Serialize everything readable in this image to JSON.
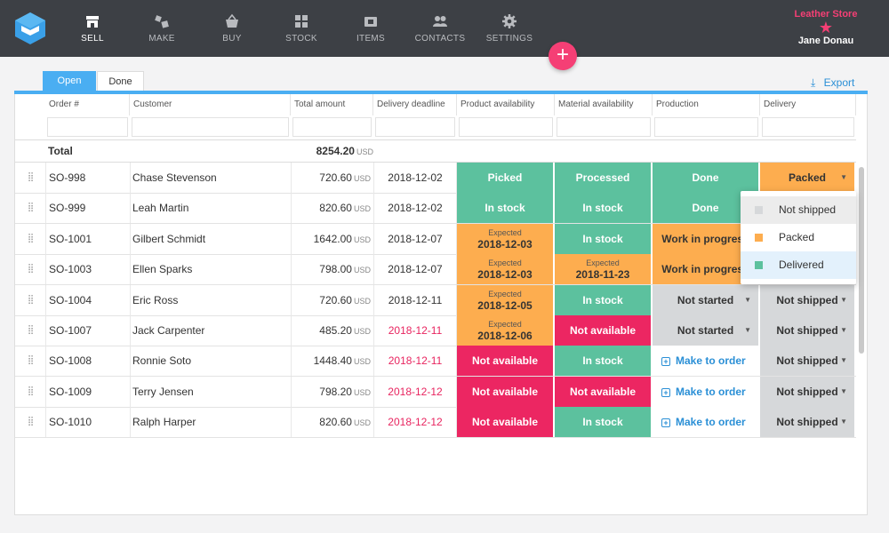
{
  "nav": {
    "items": [
      {
        "label": "SELL",
        "icon": "store-icon",
        "active": true
      },
      {
        "label": "MAKE",
        "icon": "make-icon",
        "active": false
      },
      {
        "label": "BUY",
        "icon": "basket-icon",
        "active": false
      },
      {
        "label": "STOCK",
        "icon": "stock-icon",
        "active": false
      },
      {
        "label": "ITEMS",
        "icon": "items-icon",
        "active": false
      },
      {
        "label": "CONTACTS",
        "icon": "contacts-icon",
        "active": false
      },
      {
        "label": "SETTINGS",
        "icon": "gear-icon",
        "active": false
      }
    ]
  },
  "store": {
    "name": "Leather Store",
    "user": "Jane Donau",
    "star": "★"
  },
  "fab": {
    "label": "+"
  },
  "tabs": [
    {
      "label": "Open",
      "active": true
    },
    {
      "label": "Done",
      "active": false
    }
  ],
  "toolbar": {
    "export_label": "Export",
    "export_icon": "⤓"
  },
  "table": {
    "columns": [
      "Order #",
      "Customer",
      "Total amount",
      "Delivery deadline",
      "Product availability",
      "Material availability",
      "Production",
      "Delivery"
    ],
    "total_label": "Total",
    "total_value": "8254.20",
    "currency": "USD",
    "rows": [
      {
        "order": "SO-998",
        "customer": "Chase Stevenson",
        "amount": "720.60",
        "deadline": "2018-12-02",
        "late": false,
        "product": {
          "text": "Picked",
          "color": "green"
        },
        "material": {
          "text": "Processed",
          "color": "green"
        },
        "production": {
          "text": "Done",
          "type": "green"
        },
        "delivery": {
          "text": "Packed",
          "type": "orange"
        }
      },
      {
        "order": "SO-999",
        "customer": "Leah Martin",
        "amount": "820.60",
        "deadline": "2018-12-02",
        "late": false,
        "product": {
          "text": "In stock",
          "color": "green"
        },
        "material": {
          "text": "In stock",
          "color": "green"
        },
        "production": {
          "text": "Done",
          "type": "green"
        },
        "delivery": {
          "text": "",
          "type": "none"
        }
      },
      {
        "order": "SO-1001",
        "customer": "Gilbert Schmidt",
        "amount": "1642.00",
        "deadline": "2018-12-07",
        "late": false,
        "product": {
          "text": "Expected",
          "date": "2018-12-03",
          "color": "orange"
        },
        "material": {
          "text": "In stock",
          "color": "green"
        },
        "production": {
          "text": "Work in progress",
          "type": "orange"
        },
        "delivery": {
          "text": "",
          "type": "none"
        }
      },
      {
        "order": "SO-1003",
        "customer": "Ellen Sparks",
        "amount": "798.00",
        "deadline": "2018-12-07",
        "late": false,
        "product": {
          "text": "Expected",
          "date": "2018-12-03",
          "color": "orange"
        },
        "material": {
          "text": "Expected",
          "date": "2018-11-23",
          "color": "orange"
        },
        "production": {
          "text": "Work in progress",
          "type": "orange"
        },
        "delivery": {
          "text": "",
          "type": "none"
        }
      },
      {
        "order": "SO-1004",
        "customer": "Eric Ross",
        "amount": "720.60",
        "deadline": "2018-12-11",
        "late": false,
        "product": {
          "text": "Expected",
          "date": "2018-12-05",
          "color": "orange"
        },
        "material": {
          "text": "In stock",
          "color": "green"
        },
        "production": {
          "text": "Not started",
          "type": "grey"
        },
        "delivery": {
          "text": "Not shipped",
          "type": "grey"
        }
      },
      {
        "order": "SO-1007",
        "customer": "Jack Carpenter",
        "amount": "485.20",
        "deadline": "2018-12-11",
        "late": true,
        "product": {
          "text": "Expected",
          "date": "2018-12-06",
          "color": "orange"
        },
        "material": {
          "text": "Not available",
          "color": "red"
        },
        "production": {
          "text": "Not started",
          "type": "grey"
        },
        "delivery": {
          "text": "Not shipped",
          "type": "grey"
        }
      },
      {
        "order": "SO-1008",
        "customer": "Ronnie Soto",
        "amount": "1448.40",
        "deadline": "2018-12-11",
        "late": true,
        "product": {
          "text": "Not available",
          "color": "red"
        },
        "material": {
          "text": "In stock",
          "color": "green"
        },
        "production": {
          "text": "Make to order",
          "type": "link"
        },
        "delivery": {
          "text": "Not shipped",
          "type": "grey"
        }
      },
      {
        "order": "SO-1009",
        "customer": "Terry Jensen",
        "amount": "798.20",
        "deadline": "2018-12-12",
        "late": true,
        "product": {
          "text": "Not available",
          "color": "red"
        },
        "material": {
          "text": "Not available",
          "color": "red"
        },
        "production": {
          "text": "Make to order",
          "type": "link"
        },
        "delivery": {
          "text": "Not shipped",
          "type": "grey"
        }
      },
      {
        "order": "SO-1010",
        "customer": "Ralph Harper",
        "amount": "820.60",
        "deadline": "2018-12-12",
        "late": true,
        "product": {
          "text": "Not available",
          "color": "red"
        },
        "material": {
          "text": "In stock",
          "color": "green"
        },
        "production": {
          "text": "Make to order",
          "type": "link"
        },
        "delivery": {
          "text": "Not shipped",
          "type": "grey"
        }
      }
    ]
  },
  "dropdown": {
    "options": [
      {
        "label": "Not shipped",
        "color": "#d6d8da",
        "state": "hover"
      },
      {
        "label": "Packed",
        "color": "#fdad4f",
        "state": "none"
      },
      {
        "label": "Delivered",
        "color": "#5cc19e",
        "state": "selected"
      }
    ]
  },
  "colors": {
    "accent": "#4aaef2",
    "pink": "#f53f75",
    "green": "#5cc19e",
    "orange": "#fdad4f",
    "red": "#ec2662",
    "grey": "#d6d8da",
    "link": "#2a8fd6"
  }
}
